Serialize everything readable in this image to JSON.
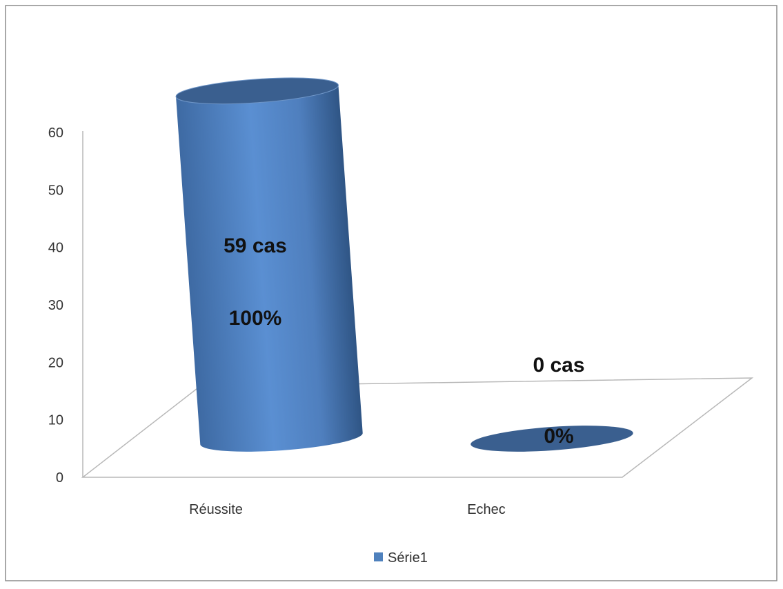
{
  "chart_data": {
    "type": "bar",
    "style": "3d-cylinder",
    "categories": [
      "Réussite",
      "Echec"
    ],
    "series": [
      {
        "name": "Série1",
        "values": [
          59,
          0
        ],
        "color": "#4f81bd"
      }
    ],
    "data_labels": [
      {
        "count": "59 cas",
        "percent": "100%"
      },
      {
        "count": "0 cas",
        "percent": "0%"
      }
    ],
    "ylim": [
      0,
      60
    ],
    "yticks": [
      "0",
      "10",
      "20",
      "30",
      "40",
      "50",
      "60"
    ],
    "grid": false,
    "legend": {
      "position": "bottom"
    }
  }
}
